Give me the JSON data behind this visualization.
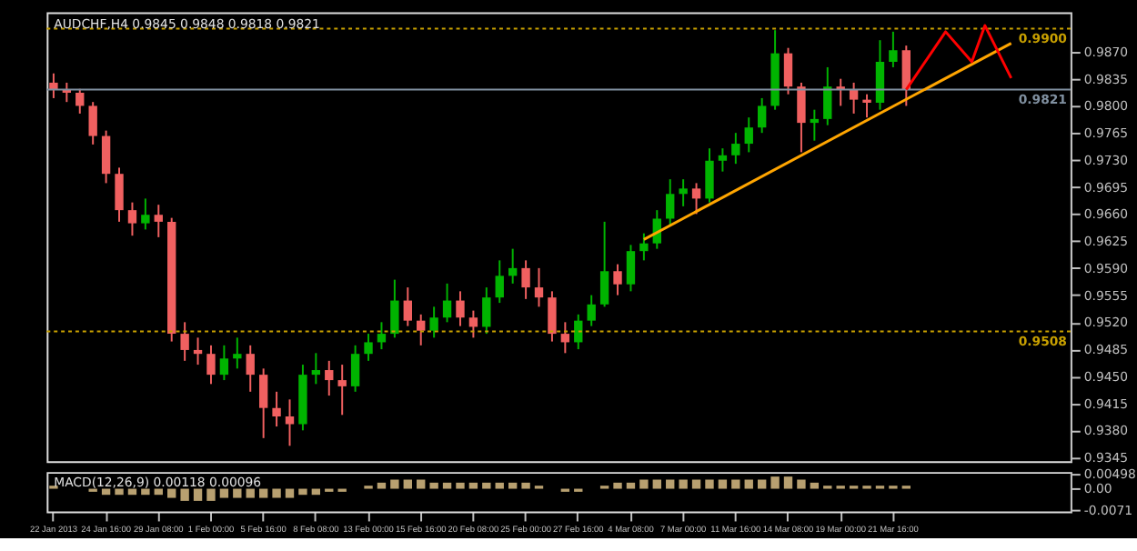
{
  "chart_data": [
    {
      "type": "candlestick",
      "title": "AUDCHF,H4  0.9845 0.9848 0.9818 0.9821",
      "categories": [
        "22 Jan 2013",
        null,
        null,
        null,
        "24 Jan 16:00",
        null,
        null,
        null,
        "29 Jan 08:00",
        null,
        null,
        null,
        "1 Feb 00:00",
        null,
        null,
        null,
        "5 Feb 16:00",
        null,
        null,
        null,
        "8 Feb 08:00",
        null,
        null,
        null,
        "13 Feb 00:00",
        null,
        null,
        null,
        "15 Feb 16:00",
        null,
        null,
        null,
        "20 Feb 08:00",
        null,
        null,
        null,
        "25 Feb 00:00",
        null,
        null,
        null,
        "27 Feb 16:00",
        null,
        null,
        null,
        "4 Mar 08:00",
        null,
        null,
        null,
        "7 Mar 00:00",
        null,
        null,
        null,
        "11 Mar 16:00",
        null,
        null,
        null,
        "14 Mar 08:00",
        null,
        null,
        null,
        "19 Mar 00:00",
        null,
        null,
        null,
        "21 Mar 16:00",
        null,
        null,
        null,
        null,
        null,
        null,
        null,
        null,
        null,
        null,
        null,
        null,
        null
      ],
      "ohlc": [
        [
          0.983,
          0.9842,
          0.981,
          0.9821
        ],
        [
          0.9821,
          0.983,
          0.9805,
          0.9817
        ],
        [
          0.9817,
          0.9822,
          0.979,
          0.98
        ],
        [
          0.98,
          0.9805,
          0.975,
          0.9761
        ],
        [
          0.9761,
          0.9768,
          0.97,
          0.9712
        ],
        [
          0.9712,
          0.972,
          0.965,
          0.9665
        ],
        [
          0.9665,
          0.9675,
          0.9632,
          0.9648
        ],
        [
          0.9648,
          0.968,
          0.964,
          0.9659
        ],
        [
          0.9659,
          0.9672,
          0.963,
          0.965
        ],
        [
          0.965,
          0.9655,
          0.9495,
          0.9505
        ],
        [
          0.9505,
          0.952,
          0.947,
          0.9484
        ],
        [
          0.9484,
          0.95,
          0.9465,
          0.9479
        ],
        [
          0.9479,
          0.949,
          0.944,
          0.9452
        ],
        [
          0.9452,
          0.949,
          0.9445,
          0.9473
        ],
        [
          0.9473,
          0.95,
          0.946,
          0.9479
        ],
        [
          0.9479,
          0.949,
          0.943,
          0.9452
        ],
        [
          0.9452,
          0.946,
          0.937,
          0.9409
        ],
        [
          0.9409,
          0.943,
          0.9385,
          0.9398
        ],
        [
          0.9398,
          0.942,
          0.936,
          0.9388
        ],
        [
          0.9388,
          0.9465,
          0.938,
          0.9452
        ],
        [
          0.9452,
          0.948,
          0.944,
          0.9458
        ],
        [
          0.9458,
          0.947,
          0.9425,
          0.9445
        ],
        [
          0.9445,
          0.9465,
          0.94,
          0.9437
        ],
        [
          0.9437,
          0.949,
          0.943,
          0.9479
        ],
        [
          0.9479,
          0.9505,
          0.947,
          0.9494
        ],
        [
          0.9494,
          0.952,
          0.9485,
          0.9505
        ],
        [
          0.9505,
          0.9575,
          0.95,
          0.9548
        ],
        [
          0.9548,
          0.9565,
          0.9515,
          0.9522
        ],
        [
          0.9522,
          0.953,
          0.949,
          0.9509
        ],
        [
          0.9509,
          0.954,
          0.95,
          0.9526
        ],
        [
          0.9526,
          0.957,
          0.952,
          0.9548
        ],
        [
          0.9548,
          0.956,
          0.9515,
          0.9526
        ],
        [
          0.9526,
          0.9535,
          0.95,
          0.9514
        ],
        [
          0.9514,
          0.9565,
          0.9505,
          0.9552
        ],
        [
          0.9552,
          0.96,
          0.9545,
          0.958
        ],
        [
          0.958,
          0.9615,
          0.957,
          0.959
        ],
        [
          0.959,
          0.96,
          0.955,
          0.9565
        ],
        [
          0.9565,
          0.959,
          0.954,
          0.9552
        ],
        [
          0.9552,
          0.956,
          0.9495,
          0.9505
        ],
        [
          0.9505,
          0.952,
          0.948,
          0.9494
        ],
        [
          0.9494,
          0.953,
          0.9485,
          0.9522
        ],
        [
          0.9522,
          0.9555,
          0.9515,
          0.9543
        ],
        [
          0.9543,
          0.965,
          0.954,
          0.9586
        ],
        [
          0.9586,
          0.9595,
          0.9555,
          0.9569
        ],
        [
          0.9569,
          0.962,
          0.956,
          0.9612
        ],
        [
          0.9612,
          0.9635,
          0.96,
          0.9622
        ],
        [
          0.9622,
          0.9665,
          0.9615,
          0.9654
        ],
        [
          0.9654,
          0.9705,
          0.9645,
          0.9686
        ],
        [
          0.9686,
          0.9705,
          0.967,
          0.9693
        ],
        [
          0.9693,
          0.97,
          0.966,
          0.968
        ],
        [
          0.968,
          0.9745,
          0.9675,
          0.9729
        ],
        [
          0.9729,
          0.9745,
          0.9715,
          0.9736
        ],
        [
          0.9736,
          0.9765,
          0.9725,
          0.9751
        ],
        [
          0.9751,
          0.9785,
          0.974,
          0.9772
        ],
        [
          0.9772,
          0.981,
          0.9765,
          0.98
        ],
        [
          0.98,
          0.9898,
          0.9795,
          0.9868
        ],
        [
          0.9868,
          0.9875,
          0.9815,
          0.9825
        ],
        [
          0.9825,
          0.983,
          0.974,
          0.9778
        ],
        [
          0.9778,
          0.9795,
          0.9755,
          0.9783
        ],
        [
          0.9783,
          0.985,
          0.9775,
          0.9825
        ],
        [
          0.9825,
          0.9835,
          0.98,
          0.9821
        ],
        [
          0.9821,
          0.983,
          0.979,
          0.9808
        ],
        [
          0.9808,
          0.9815,
          0.9785,
          0.9804
        ],
        [
          0.9804,
          0.9885,
          0.9795,
          0.9857
        ],
        [
          0.9857,
          0.9896,
          0.985,
          0.9872
        ],
        [
          0.9872,
          0.9878,
          0.98,
          0.9821
        ],
        null,
        null,
        null,
        null,
        null,
        null,
        null,
        null,
        null,
        null,
        null,
        null
      ],
      "series": [
        {
          "type": "line",
          "color": "#ffa500",
          "values": [
            null,
            null,
            null,
            null,
            null,
            null,
            null,
            null,
            null,
            null,
            null,
            null,
            null,
            null,
            null,
            null,
            null,
            null,
            null,
            null,
            null,
            null,
            null,
            null,
            null,
            null,
            null,
            null,
            null,
            null,
            null,
            null,
            null,
            null,
            null,
            null,
            null,
            null,
            null,
            null,
            null,
            null,
            null,
            null,
            null,
            0.9627,
            null,
            null,
            null,
            null,
            null,
            null,
            null,
            null,
            null,
            null,
            null,
            null,
            null,
            null,
            null,
            null,
            null,
            null,
            null,
            null,
            null,
            null,
            null,
            null,
            null,
            null,
            null,
            0.9881,
            null,
            null,
            null,
            null
          ]
        },
        {
          "type": "line",
          "color": "#ff0000",
          "values": [
            null,
            null,
            null,
            null,
            null,
            null,
            null,
            null,
            null,
            null,
            null,
            null,
            null,
            null,
            null,
            null,
            null,
            null,
            null,
            null,
            null,
            null,
            null,
            null,
            null,
            null,
            null,
            null,
            null,
            null,
            null,
            null,
            null,
            null,
            null,
            null,
            null,
            null,
            null,
            null,
            null,
            null,
            null,
            null,
            null,
            null,
            null,
            null,
            null,
            null,
            null,
            null,
            null,
            null,
            null,
            null,
            null,
            null,
            null,
            null,
            null,
            null,
            null,
            null,
            null,
            0.9821,
            null,
            null,
            0.9896,
            null,
            0.9857,
            0.9904,
            null,
            0.9836,
            null,
            null,
            null,
            null
          ]
        }
      ],
      "ref_lines": [
        {
          "axis": "y",
          "value": 0.99,
          "label": "0.9900",
          "color": "#c8a000",
          "line_style": "dotted"
        },
        {
          "axis": "y",
          "value": 0.9821,
          "label": "0.9821",
          "color": "#8090a0",
          "line_style": "solid"
        },
        {
          "axis": "y",
          "value": 0.9508,
          "label": "0.9508",
          "color": "#c8a000",
          "line_style": "dotted"
        }
      ],
      "ylim": [
        0.934,
        0.9921
      ],
      "yticks": [
        {
          "value": 0.9345,
          "label": "0.9345"
        },
        {
          "value": 0.938,
          "label": "0.9380"
        },
        {
          "value": 0.9415,
          "label": "0.9415"
        },
        {
          "value": 0.945,
          "label": "0.9450"
        },
        {
          "value": 0.9485,
          "label": "0.9485"
        },
        {
          "value": 0.952,
          "label": "0.9520"
        },
        {
          "value": 0.9555,
          "label": "0.9555"
        },
        {
          "value": 0.959,
          "label": "0.9590"
        },
        {
          "value": 0.9625,
          "label": "0.9625"
        },
        {
          "value": 0.966,
          "label": "0.9660"
        },
        {
          "value": 0.9695,
          "label": "0.9695"
        },
        {
          "value": 0.973,
          "label": "0.9730"
        },
        {
          "value": 0.9765,
          "label": "0.9765"
        },
        {
          "value": 0.98,
          "label": "0.9800"
        },
        {
          "value": 0.9835,
          "label": "0.9835"
        },
        {
          "value": 0.987,
          "label": "0.9870"
        }
      ],
      "grid": false
    },
    {
      "type": "bar",
      "title": "MACD(12,26,9) 0.00118 0.00096",
      "color": "#b8a070",
      "values": [
        0.001,
        0,
        0,
        -0.001,
        -0.002,
        -0.002,
        -0.002,
        -0.002,
        -0.002,
        -0.003,
        -0.004,
        -0.004,
        -0.004,
        -0.003,
        -0.003,
        -0.003,
        -0.003,
        -0.003,
        -0.003,
        -0.002,
        -0.002,
        -0.001,
        -0.001,
        0,
        0.001,
        0.002,
        0.003,
        0.003,
        0.003,
        0.002,
        0.002,
        0.002,
        0.002,
        0.002,
        0.002,
        0.002,
        0.002,
        0.001,
        0,
        -0.001,
        -0.001,
        0,
        0.001,
        0.002,
        0.002,
        0.003,
        0.003,
        0.003,
        0.003,
        0.003,
        0.003,
        0.003,
        0.003,
        0.003,
        0.003,
        0.004,
        0.004,
        0.003,
        0.002,
        0.001,
        0.001,
        0.001,
        0.001,
        0.001,
        0.001,
        0.001,
        null,
        null,
        null,
        null,
        null,
        null,
        null,
        null,
        null,
        null,
        null,
        null
      ],
      "ylim": [
        -0.0075,
        0.0055
      ],
      "tick_labels": "y",
      "yticks": [
        {
          "value": 0.00498,
          "label": "0.00498"
        },
        {
          "value": 0,
          "label": "0.00"
        },
        {
          "value": -0.0071,
          "label": "-0.0071"
        }
      ],
      "grid": false
    }
  ]
}
